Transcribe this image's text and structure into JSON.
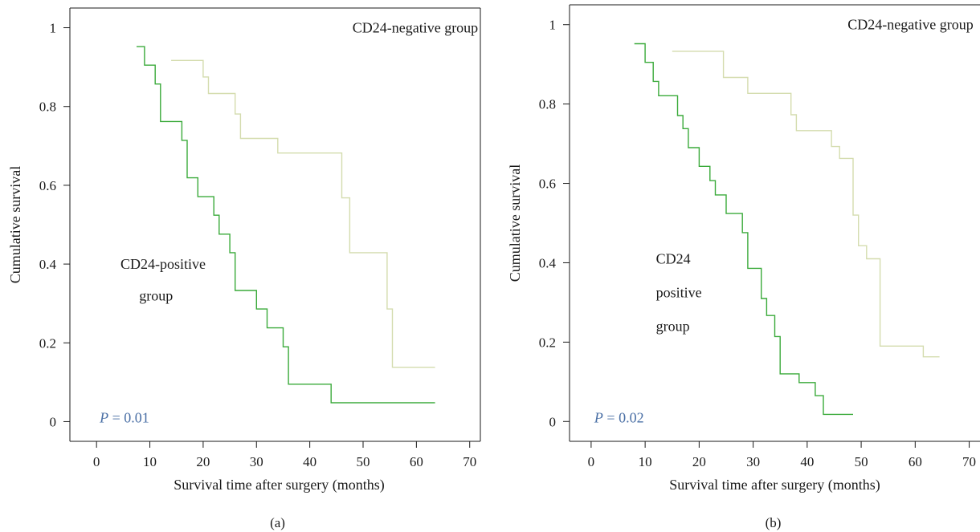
{
  "chart_data": [
    {
      "type": "line",
      "panel_label": "(a)",
      "xlabel": "Survival time after surgery (months)",
      "ylabel": "Cumulative survival",
      "xlim": [
        -5,
        72
      ],
      "ylim": [
        -0.05,
        1.05
      ],
      "xticks": [
        0,
        10,
        20,
        30,
        40,
        50,
        60,
        70
      ],
      "yticks": [
        0,
        0.2,
        0.4,
        0.6,
        0.8,
        1
      ],
      "ytick_labels": [
        "0",
        "0.2",
        "0.4",
        "0.6",
        "0.8",
        "1"
      ],
      "p_value_label": "P",
      "p_value_text": "= 0.01",
      "series": [
        {
          "name": "CD24-negative group",
          "color": "#d4dcae",
          "x": [
            14,
            20,
            21,
            22,
            26,
            27,
            27.5,
            34,
            46,
            47.5,
            54.5,
            55.5,
            63.5
          ],
          "y": [
            0.917,
            0.875,
            0.833,
            0.833,
            0.781,
            0.719,
            0.719,
            0.682,
            0.568,
            0.429,
            0.286,
            0.138,
            0.138
          ]
        },
        {
          "name": "CD24-positive group",
          "color": "#3aaa3a",
          "x": [
            7.5,
            9,
            11,
            12,
            16,
            17,
            19,
            22,
            23,
            25,
            26,
            27,
            30,
            32,
            35,
            36,
            44,
            63.5
          ],
          "y": [
            0.952,
            0.905,
            0.857,
            0.762,
            0.714,
            0.619,
            0.571,
            0.524,
            0.476,
            0.429,
            0.333,
            0.333,
            0.286,
            0.238,
            0.19,
            0.095,
            0.048,
            0.048
          ]
        }
      ],
      "annotations": [
        {
          "text": "CD24-negative group",
          "x": 48,
          "y": 1.0
        },
        {
          "text": "CD24-positive",
          "x": 4.5,
          "y": 0.4
        },
        {
          "text": "group",
          "x": 8,
          "y": 0.32
        }
      ]
    },
    {
      "type": "line",
      "panel_label": "(b)",
      "xlabel": "Survival time after surgery (months)",
      "ylabel": "Cumulative survival",
      "xlim": [
        -4,
        72
      ],
      "ylim": [
        -0.05,
        1.05
      ],
      "xticks": [
        0,
        10,
        20,
        30,
        40,
        50,
        60,
        70
      ],
      "yticks": [
        0,
        0.2,
        0.4,
        0.6,
        0.8,
        1
      ],
      "ytick_labels": [
        "0",
        "0.2",
        "0.4",
        "0.6",
        "0.8",
        "1"
      ],
      "p_value_label": "P",
      "p_value_text": "= 0.02",
      "series": [
        {
          "name": "CD24-negative group",
          "color": "#d4dcae",
          "x": [
            15,
            24.5,
            29,
            37,
            38,
            44.5,
            46,
            48.5,
            49.5,
            51,
            53.5,
            61.5,
            64.5
          ],
          "y": [
            0.933,
            0.867,
            0.827,
            0.773,
            0.733,
            0.693,
            0.663,
            0.52,
            0.443,
            0.41,
            0.19,
            0.163,
            0.163
          ]
        },
        {
          "name": "CD24-positive group",
          "color": "#3aaa3a",
          "x": [
            8,
            10,
            11.5,
            12.5,
            16,
            17,
            18,
            20,
            22,
            23,
            24.5,
            25,
            28,
            29,
            31.5,
            32.5,
            34,
            35,
            36.5,
            38.5,
            41.5,
            43,
            48.5
          ],
          "y": [
            0.952,
            0.905,
            0.857,
            0.821,
            0.771,
            0.738,
            0.69,
            0.643,
            0.607,
            0.571,
            0.571,
            0.524,
            0.476,
            0.386,
            0.31,
            0.267,
            0.214,
            0.12,
            0.12,
            0.098,
            0.065,
            0.018,
            0.018
          ]
        }
      ],
      "annotations": [
        {
          "text": "CD24-negative group",
          "x": 47.5,
          "y": 1.0
        },
        {
          "text": "CD24",
          "x": 12,
          "y": 0.41
        },
        {
          "text": "positive",
          "x": 12,
          "y": 0.325
        },
        {
          "text": "group",
          "x": 12,
          "y": 0.24
        }
      ]
    }
  ]
}
